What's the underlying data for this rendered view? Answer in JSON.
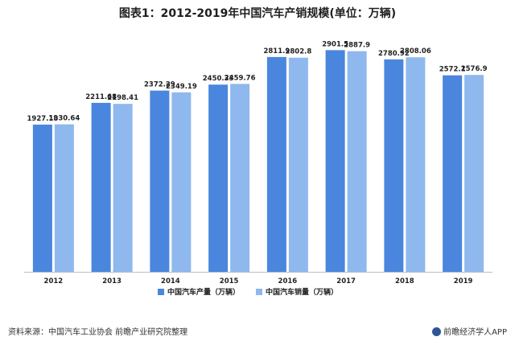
{
  "title": "图表1：2012-2019年中国汽车产销规模(单位：万辆)",
  "source": "资料来源：中国汽车工业协会 前瞻产业研究院整理",
  "brand": "前瞻经济学人APP",
  "colors": {
    "production": "#4a86de",
    "sales": "#8fb8ee",
    "axis": "#bdbdbd"
  },
  "chart_data": {
    "type": "bar",
    "title": "图表1：2012-2019年中国汽车产销规模(单位：万辆)",
    "categories": [
      "2012",
      "2013",
      "2014",
      "2015",
      "2016",
      "2017",
      "2018",
      "2019"
    ],
    "series": [
      {
        "name": "中国汽车产量（万辆）",
        "values": [
          1927.18,
          2211.68,
          2372.29,
          2450.33,
          2811.9,
          2901.5,
          2780.92,
          2572.1
        ],
        "labels": [
          "1927.18",
          "2211.68",
          "2372.29",
          "2450.33",
          "2811.9",
          "2901.5",
          "2780.92",
          "2572.1"
        ]
      },
      {
        "name": "中国汽车销量（万辆）",
        "values": [
          1930.64,
          2198.41,
          2349.19,
          2459.76,
          2802.8,
          2887.9,
          2808.06,
          2576.9
        ],
        "labels": [
          "1930.64",
          "2198.41",
          "2349.19",
          "2459.76",
          "2802.8",
          "2887.9",
          "2808.06",
          "2576.9"
        ]
      }
    ],
    "xlabel": "",
    "ylabel": "",
    "ylim": [
      0,
      3000
    ],
    "grid": false,
    "legend_position": "bottom"
  }
}
